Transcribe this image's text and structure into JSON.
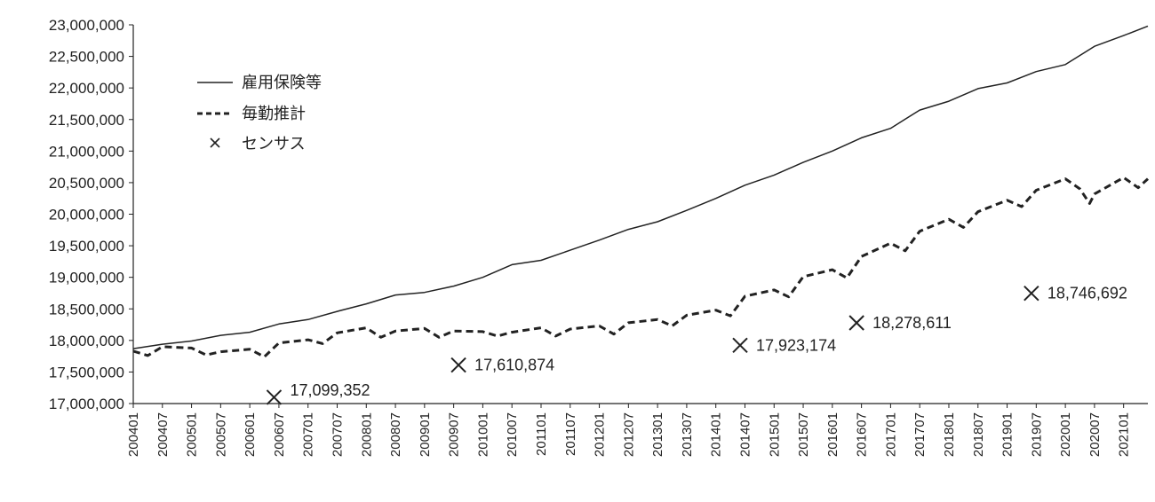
{
  "chart_data": {
    "type": "line",
    "title": "",
    "xlabel": "",
    "ylabel": "",
    "ylim": [
      17000000,
      23000000
    ],
    "y_ticks": [
      "17,000,000",
      "17,500,000",
      "18,000,000",
      "18,500,000",
      "19,000,000",
      "19,500,000",
      "20,000,000",
      "20,500,000",
      "21,000,000",
      "21,500,000",
      "22,000,000",
      "22,500,000",
      "23,000,000"
    ],
    "x_ticks": [
      "200401",
      "200407",
      "200501",
      "200507",
      "200601",
      "200607",
      "200701",
      "200707",
      "200801",
      "200807",
      "200901",
      "200907",
      "201001",
      "201007",
      "201101",
      "201107",
      "201201",
      "201207",
      "201301",
      "201307",
      "201401",
      "201407",
      "201501",
      "201507",
      "201601",
      "201607",
      "201701",
      "201707",
      "201801",
      "201807",
      "201901",
      "201907",
      "202001",
      "202007",
      "202101"
    ],
    "x_range": [
      "200401",
      "202106"
    ],
    "legend": {
      "placement": "top-left",
      "items": [
        "雇用保険等",
        "毎勤推計",
        "センサス"
      ]
    },
    "series": [
      {
        "name": "雇用保険等",
        "style": "solid",
        "points": [
          [
            "200401",
            17870000
          ],
          [
            "200407",
            17940000
          ],
          [
            "200501",
            17990000
          ],
          [
            "200507",
            18080000
          ],
          [
            "200601",
            18130000
          ],
          [
            "200607",
            18260000
          ],
          [
            "200701",
            18330000
          ],
          [
            "200707",
            18460000
          ],
          [
            "200801",
            18580000
          ],
          [
            "200807",
            18720000
          ],
          [
            "200901",
            18760000
          ],
          [
            "200907",
            18860000
          ],
          [
            "201001",
            19000000
          ],
          [
            "201007",
            19200000
          ],
          [
            "201101",
            19270000
          ],
          [
            "201107",
            19430000
          ],
          [
            "201201",
            19590000
          ],
          [
            "201207",
            19760000
          ],
          [
            "201301",
            19880000
          ],
          [
            "201307",
            20060000
          ],
          [
            "201401",
            20250000
          ],
          [
            "201407",
            20460000
          ],
          [
            "201501",
            20620000
          ],
          [
            "201507",
            20820000
          ],
          [
            "201601",
            21000000
          ],
          [
            "201607",
            21210000
          ],
          [
            "201701",
            21360000
          ],
          [
            "201707",
            21650000
          ],
          [
            "201801",
            21790000
          ],
          [
            "201807",
            21990000
          ],
          [
            "201901",
            22080000
          ],
          [
            "201907",
            22260000
          ],
          [
            "202001",
            22370000
          ],
          [
            "202007",
            22660000
          ],
          [
            "202101",
            22830000
          ],
          [
            "202106",
            22980000
          ]
        ]
      },
      {
        "name": "毎勤推計",
        "style": "dashed",
        "points": [
          [
            "200401",
            17830000
          ],
          [
            "200404",
            17760000
          ],
          [
            "200407",
            17900000
          ],
          [
            "200501",
            17880000
          ],
          [
            "200504",
            17770000
          ],
          [
            "200507",
            17820000
          ],
          [
            "200601",
            17860000
          ],
          [
            "200604",
            17740000
          ],
          [
            "200607",
            17960000
          ],
          [
            "200701",
            18010000
          ],
          [
            "200704",
            17950000
          ],
          [
            "200707",
            18120000
          ],
          [
            "200801",
            18200000
          ],
          [
            "200804",
            18050000
          ],
          [
            "200807",
            18150000
          ],
          [
            "200901",
            18190000
          ],
          [
            "200904",
            18050000
          ],
          [
            "200907",
            18150000
          ],
          [
            "201001",
            18140000
          ],
          [
            "201004",
            18070000
          ],
          [
            "201007",
            18130000
          ],
          [
            "201101",
            18200000
          ],
          [
            "201104",
            18070000
          ],
          [
            "201107",
            18180000
          ],
          [
            "201201",
            18230000
          ],
          [
            "201204",
            18100000
          ],
          [
            "201207",
            18280000
          ],
          [
            "201301",
            18330000
          ],
          [
            "201304",
            18230000
          ],
          [
            "201307",
            18400000
          ],
          [
            "201401",
            18480000
          ],
          [
            "201404",
            18390000
          ],
          [
            "201407",
            18700000
          ],
          [
            "201501",
            18800000
          ],
          [
            "201504",
            18690000
          ],
          [
            "201507",
            19010000
          ],
          [
            "201601",
            19120000
          ],
          [
            "201604",
            18990000
          ],
          [
            "201607",
            19330000
          ],
          [
            "201701",
            19540000
          ],
          [
            "201704",
            19420000
          ],
          [
            "201707",
            19730000
          ],
          [
            "201801",
            19920000
          ],
          [
            "201804",
            19790000
          ],
          [
            "201807",
            20040000
          ],
          [
            "201901",
            20220000
          ],
          [
            "201904",
            20120000
          ],
          [
            "201907",
            20380000
          ],
          [
            "202001",
            20560000
          ],
          [
            "202004",
            20400000
          ],
          [
            "202006",
            20170000
          ],
          [
            "202007",
            20320000
          ],
          [
            "202101",
            20580000
          ],
          [
            "202104",
            20420000
          ],
          [
            "202106",
            20560000
          ]
        ]
      },
      {
        "name": "センサス",
        "style": "marker-x",
        "points": [
          [
            "200606",
            17099352
          ],
          [
            "200908",
            17610874
          ],
          [
            "201406",
            17923174
          ],
          [
            "201606",
            18278611
          ],
          [
            "201906",
            18746692
          ]
        ],
        "labels": [
          "17,099,352",
          "17,610,874",
          "17,923,174",
          "18,278,611",
          "18,746,692"
        ]
      }
    ]
  }
}
